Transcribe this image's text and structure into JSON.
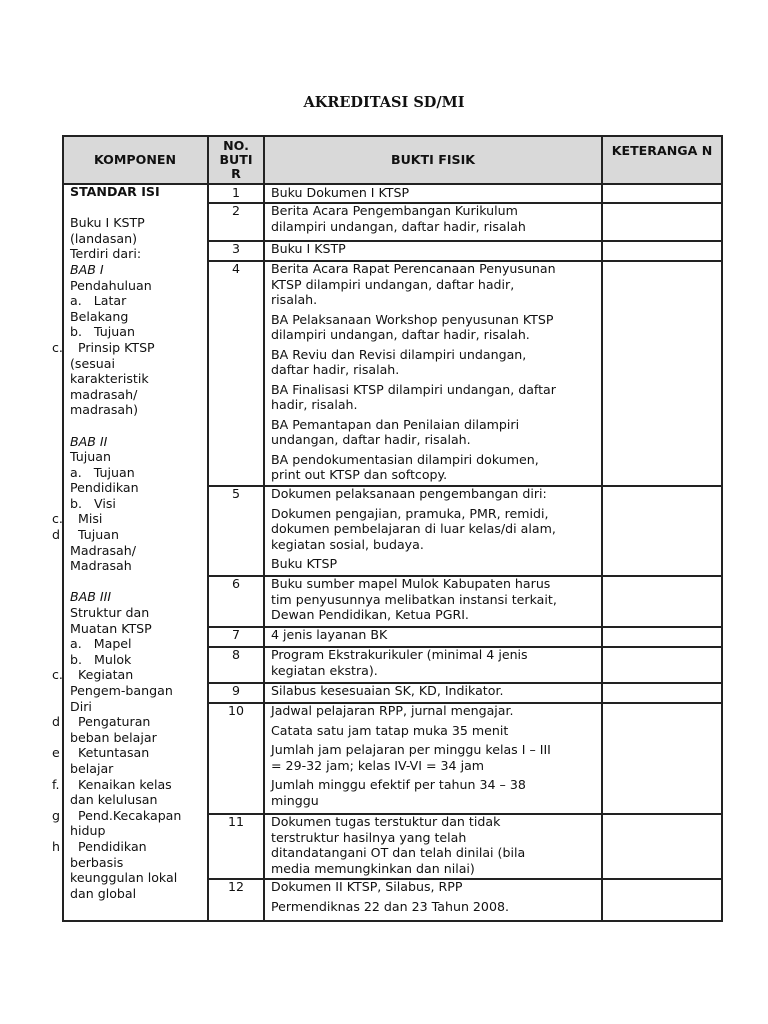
{
  "title": "AKREDITASI SD/MI",
  "headers": {
    "komponen": "KOMPONEN",
    "no": "NO. BUTI R",
    "bukti": "BUKTI FISIK",
    "ket": "KETERANGA N"
  },
  "komponen": {
    "heading": "STANDAR ISI",
    "lines": [
      {
        "t": ""
      },
      {
        "t": "Buku I KSTP"
      },
      {
        "t": "(landasan)"
      },
      {
        "t": "Terdiri dari:"
      },
      {
        "t": "BAB I",
        "i": true
      },
      {
        "t": "Pendahuluan"
      },
      {
        "t": "a.   Latar"
      },
      {
        "t": "Belakang"
      },
      {
        "t": "b.   Tujuan"
      },
      {
        "m": "c.",
        "t": "  Prinsip KTSP"
      },
      {
        "t": "(sesuai"
      },
      {
        "t": "karakteristik"
      },
      {
        "t": "madrasah/"
      },
      {
        "t": "madrasah)"
      },
      {
        "t": ""
      },
      {
        "t": "BAB II",
        "i": true
      },
      {
        "t": "Tujuan"
      },
      {
        "t": "a.   Tujuan"
      },
      {
        "t": "Pendidikan"
      },
      {
        "t": "b.   Visi"
      },
      {
        "m": "c.",
        "t": "  Misi"
      },
      {
        "m": "d",
        "t": "  Tujuan"
      },
      {
        "t": "Madrasah/"
      },
      {
        "t": "Madrasah"
      },
      {
        "t": ""
      },
      {
        "t": "BAB III",
        "i": true
      },
      {
        "t": "Struktur dan"
      },
      {
        "t": "Muatan KTSP"
      },
      {
        "t": "a.   Mapel"
      },
      {
        "t": "b.   Mulok"
      },
      {
        "m": "c.",
        "t": "  Kegiatan"
      },
      {
        "t": "Pengem-bangan"
      },
      {
        "t": "Diri"
      },
      {
        "m": "d",
        "t": "  Pengaturan"
      },
      {
        "t": "beban belajar"
      },
      {
        "m": "e",
        "t": "  Ketuntasan"
      },
      {
        "t": "belajar"
      },
      {
        "m": "f.",
        "t": "  Kenaikan kelas"
      },
      {
        "t": "dan kelulusan"
      },
      {
        "m": "g",
        "t": "  Pend.Kecakapan"
      },
      {
        "t": "hidup"
      },
      {
        "m": "h",
        "t": "  Pendidikan"
      },
      {
        "t": "berbasis"
      },
      {
        "t": "keunggulan lokal"
      },
      {
        "t": "dan global"
      }
    ]
  },
  "rows": [
    {
      "no": "1",
      "paras": [
        [
          "Buku Dokumen I KTSP"
        ]
      ]
    },
    {
      "no": "2",
      "paras": [
        [
          "Berita Acara Pengembangan Kurikulum",
          "dilampiri undangan, daftar hadir, risalah"
        ]
      ]
    },
    {
      "no": "3",
      "paras": [
        [
          "Buku I KSTP"
        ]
      ]
    },
    {
      "no": "4",
      "paras": [
        [
          "Berita Acara Rapat Perencanaan Penyusunan",
          "KTSP dilampiri undangan, daftar hadir,",
          "risalah."
        ],
        [
          "BA Pelaksanaan Workshop penyusunan KTSP",
          "dilampiri undangan, daftar hadir, risalah."
        ],
        [
          "BA Reviu dan Revisi dilampiri undangan,",
          "daftar hadir, risalah."
        ],
        [
          "BA Finalisasi KTSP dilampiri undangan, daftar",
          "hadir, risalah."
        ],
        [
          "BA Pemantapan dan Penilaian dilampiri",
          "undangan, daftar hadir, risalah."
        ],
        [
          "BA pendokumentasian dilampiri dokumen,",
          "print out KTSP dan softcopy."
        ]
      ]
    },
    {
      "no": "5",
      "paras": [
        [
          "Dokumen pelaksanaan pengembangan diri:"
        ],
        [
          "Dokumen pengajian, pramuka, PMR, remidi,",
          "dokumen pembelajaran di luar kelas/di alam,",
          "kegiatan sosial, budaya."
        ],
        [
          "Buku KTSP"
        ]
      ]
    },
    {
      "no": "6",
      "paras": [
        [
          "Buku sumber mapel Mulok Kabupaten harus",
          "tim penyusunnya melibatkan instansi terkait,",
          "Dewan Pendidikan, Ketua PGRI."
        ]
      ]
    },
    {
      "no": "7",
      "paras": [
        [
          "4 jenis layanan BK"
        ]
      ]
    },
    {
      "no": "8",
      "paras": [
        [
          "Program Ekstrakurikuler (minimal 4 jenis",
          "kegiatan ekstra)."
        ]
      ]
    },
    {
      "no": "9",
      "paras": [
        [
          "Silabus kesesuaian SK, KD, Indikator."
        ]
      ]
    },
    {
      "no": "10",
      "paras": [
        [
          "Jadwal pelajaran RPP, jurnal mengajar."
        ],
        [
          "Catata satu jam tatap muka 35 menit"
        ],
        [
          "Jumlah jam pelajaran per minggu kelas I – III",
          "= 29-32 jam; kelas IV-VI = 34 jam"
        ],
        [
          "Jumlah minggu efektif per tahun 34 – 38",
          "minggu"
        ]
      ]
    },
    {
      "no": "11",
      "paras": [
        [
          "Dokumen tugas terstuktur dan tidak",
          "terstruktur hasilnya yang telah",
          "ditandatangani OT dan telah dinilai (bila",
          "media memungkinkan dan nilai)"
        ]
      ]
    },
    {
      "no": "12",
      "paras": [
        [
          "Dokumen II KTSP, Silabus, RPP"
        ],
        [
          "Permendiknas 22 dan 23 Tahun 2008."
        ]
      ]
    }
  ]
}
